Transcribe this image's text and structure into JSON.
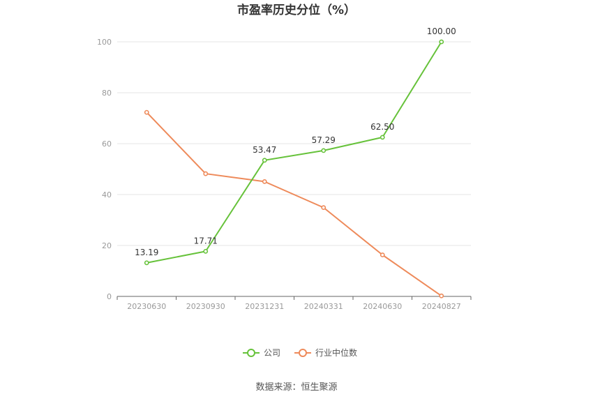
{
  "chart_data": {
    "type": "line",
    "title": "市盈率历史分位（%）",
    "categories": [
      "20230630",
      "20230930",
      "20231231",
      "20240331",
      "20240630",
      "20240827"
    ],
    "ylim": [
      0,
      100
    ],
    "yticks": [
      0,
      20,
      40,
      60,
      80,
      100
    ],
    "grid": true,
    "legend_position": "bottom",
    "series": [
      {
        "name": "公司",
        "color": "#66c23a",
        "values": [
          13.19,
          17.71,
          53.47,
          57.29,
          62.5,
          100.0
        ],
        "labels": [
          "13.19",
          "17.71",
          "53.47",
          "57.29",
          "62.50",
          "100.00"
        ]
      },
      {
        "name": "行业中位数",
        "color": "#ee8a5a",
        "values": [
          72.3,
          48.2,
          45.1,
          34.9,
          16.3,
          0.2
        ]
      }
    ]
  },
  "source": "数据来源：恒生聚源"
}
